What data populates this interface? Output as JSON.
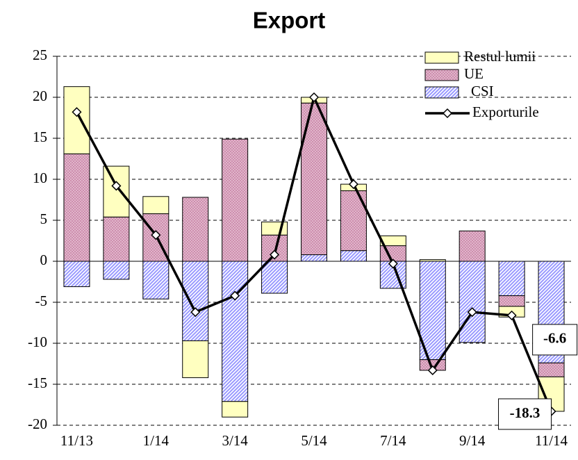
{
  "chart_data": {
    "type": "bar",
    "title": "Export",
    "categories": [
      "11/13",
      null,
      "1/14",
      null,
      "3/14",
      null,
      "5/14",
      null,
      "7/14",
      null,
      "9/14",
      null,
      "11/14"
    ],
    "series": [
      {
        "name": "Restul lumii",
        "type": "bar",
        "color": "#ffffc0",
        "values": [
          8.2,
          6.2,
          2.1,
          -4.5,
          -1.9,
          1.6,
          0.7,
          0.8,
          1.2,
          0.2,
          0,
          -1.3,
          -4.2
        ]
      },
      {
        "name": "UE",
        "type": "bar",
        "color": "#cc88aa",
        "values": [
          13.1,
          5.4,
          5.8,
          7.8,
          14.9,
          3.2,
          18.5,
          7.3,
          1.9,
          -1.3,
          3.7,
          -1.3,
          -1.7
        ]
      },
      {
        "name": "CSI",
        "type": "bar",
        "color": "#9999ff",
        "values": [
          -3.1,
          -2.2,
          -4.6,
          -9.7,
          -17.1,
          -3.9,
          0.8,
          1.3,
          -3.3,
          -12.0,
          -9.9,
          -4.2,
          -12.4
        ]
      },
      {
        "name": "Exporturile",
        "type": "line",
        "color": "#000000",
        "values": [
          18.2,
          9.2,
          3.2,
          -6.2,
          -4.2,
          0.8,
          20.0,
          9.4,
          -0.3,
          -13.3,
          -6.2,
          -6.6,
          -18.3
        ],
        "value_labels": [
          null,
          null,
          null,
          null,
          null,
          null,
          null,
          null,
          null,
          null,
          null,
          "-6.6",
          "-18.3"
        ]
      }
    ],
    "ylim": [
      -20,
      25
    ],
    "yticks": [
      -20,
      -15,
      -10,
      -5,
      0,
      5,
      10,
      15,
      20,
      25
    ],
    "grid": true,
    "legend": "top-right"
  }
}
